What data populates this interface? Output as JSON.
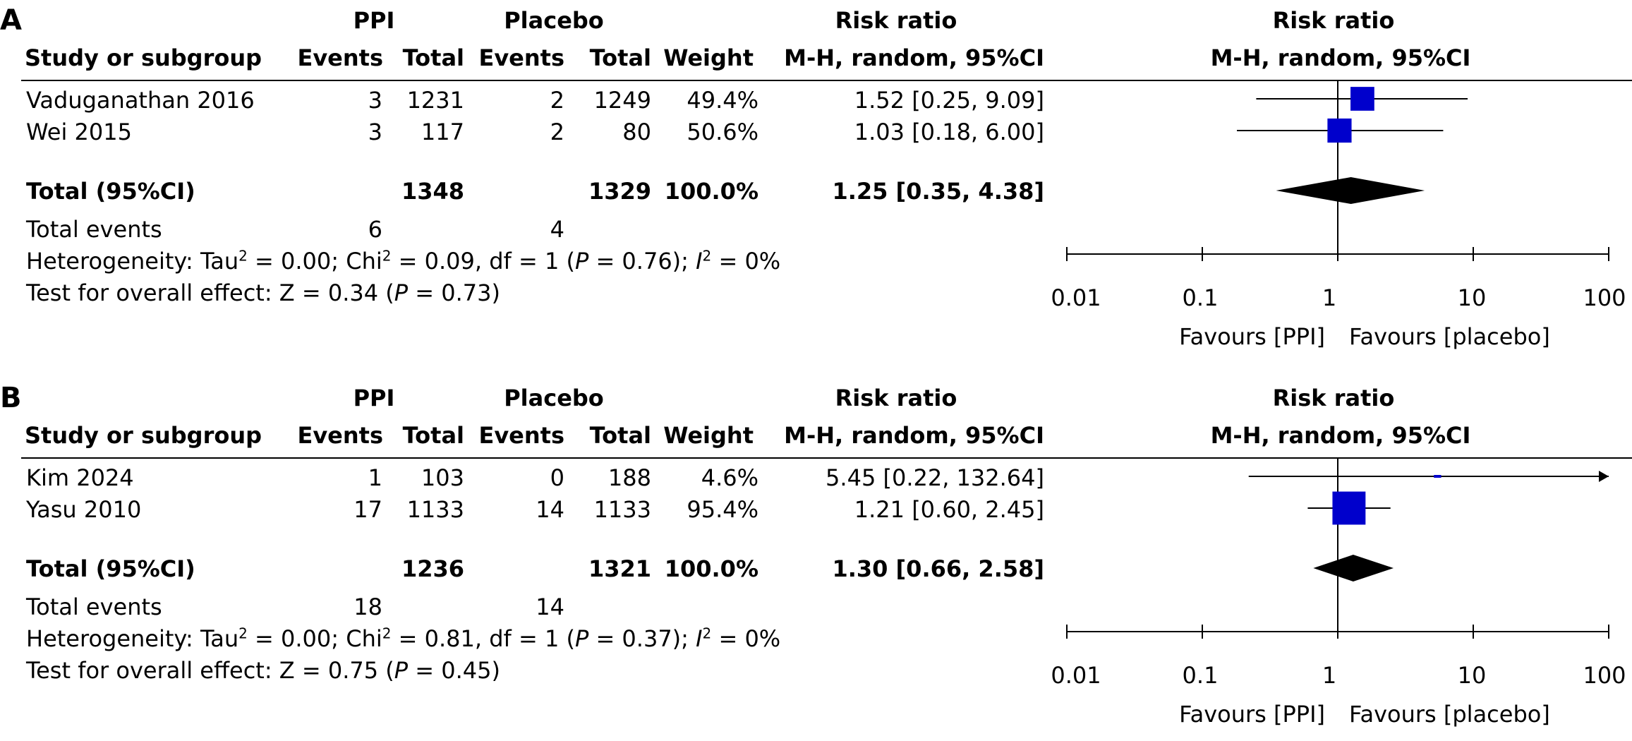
{
  "chart_data": [
    {
      "type": "forest",
      "panel_label": "A",
      "group_headers": {
        "experimental": "PPI",
        "control": "Placebo",
        "rr_col": "Risk ratio",
        "plot": "Risk ratio"
      },
      "columns": [
        "Study or subgroup",
        "Events",
        "Total",
        "Events",
        "Total",
        "Weight",
        "M-H, random, 95%CI"
      ],
      "plot_subheader": "M-H, random, 95%CI",
      "studies": [
        {
          "name": "Vaduganathan 2016",
          "ppi_events": "3",
          "ppi_total": "1231",
          "placebo_events": "2",
          "placebo_total": "1249",
          "weight": "49.4%",
          "ci_text": "1.52 [0.25, 9.09]",
          "rr": 1.52,
          "lo": 0.25,
          "hi": 9.09,
          "w": 49.4
        },
        {
          "name": "Wei 2015",
          "ppi_events": "3",
          "ppi_total": "117",
          "placebo_events": "2",
          "placebo_total": "80",
          "weight": "50.6%",
          "ci_text": "1.03 [0.18, 6.00]",
          "rr": 1.03,
          "lo": 0.18,
          "hi": 6.0,
          "w": 50.6
        }
      ],
      "total": {
        "label": "Total (95%CI)",
        "ppi_total": "1348",
        "placebo_total": "1329",
        "weight": "100.0%",
        "ci_text": "1.25 [0.35, 4.38]",
        "rr": 1.25,
        "lo": 0.35,
        "hi": 4.38
      },
      "total_events": {
        "label": "Total events",
        "ppi": "6",
        "placebo": "4"
      },
      "heterogeneity": {
        "prefix": "Heterogeneity: Tau",
        "tau2": " = 0.00; Chi",
        "chi2": " = 0.09, df = 1 (",
        "p_label": "P",
        "p_value": " = 0.76); ",
        "i_label": "I",
        "i2": " = 0%"
      },
      "overall_effect": {
        "prefix": "Test for overall effect: Z = 0.34 (",
        "p_label": "P",
        "p_value": " = 0.73)"
      },
      "axis": {
        "scale": "log",
        "ticks": [
          "0.01",
          "0.1",
          "1",
          "10",
          "100"
        ],
        "tick_values": [
          0.01,
          0.1,
          1,
          10,
          100
        ],
        "favours_left": "Favours [PPI]",
        "favours_right": "Favours [placebo]"
      },
      "marker_color": "#0000CC"
    },
    {
      "type": "forest",
      "panel_label": "B",
      "group_headers": {
        "experimental": "PPI",
        "control": "Placebo",
        "rr_col": "Risk ratio",
        "plot": "Risk ratio"
      },
      "columns": [
        "Study or subgroup",
        "Events",
        "Total",
        "Events",
        "Total",
        "Weight",
        "M-H, random, 95%CI"
      ],
      "plot_subheader": "M-H, random, 95%CI",
      "studies": [
        {
          "name": "Kim 2024",
          "ppi_events": "1",
          "ppi_total": "103",
          "placebo_events": "0",
          "placebo_total": "188",
          "weight": "4.6%",
          "ci_text": "5.45 [0.22, 132.64]",
          "rr": 5.45,
          "lo": 0.22,
          "hi": 132.64,
          "w": 4.6
        },
        {
          "name": "Yasu 2010",
          "ppi_events": "17",
          "ppi_total": "1133",
          "placebo_events": "14",
          "placebo_total": "1133",
          "weight": "95.4%",
          "ci_text": "1.21 [0.60, 2.45]",
          "rr": 1.21,
          "lo": 0.6,
          "hi": 2.45,
          "w": 95.4
        }
      ],
      "total": {
        "label": "Total (95%CI)",
        "ppi_total": "1236",
        "placebo_total": "1321",
        "weight": "100.0%",
        "ci_text": "1.30 [0.66, 2.58]",
        "rr": 1.3,
        "lo": 0.66,
        "hi": 2.58
      },
      "total_events": {
        "label": "Total events",
        "ppi": "18",
        "placebo": "14"
      },
      "heterogeneity": {
        "prefix": "Heterogeneity: Tau",
        "tau2": " = 0.00; Chi",
        "chi2": " = 0.81, df = 1 (",
        "p_label": "P",
        "p_value": " = 0.37); ",
        "i_label": "I",
        "i2": " = 0%"
      },
      "overall_effect": {
        "prefix": "Test for overall effect: Z = 0.75 (",
        "p_label": "P",
        "p_value": " = 0.45)"
      },
      "axis": {
        "scale": "log",
        "ticks": [
          "0.01",
          "0.1",
          "1",
          "10",
          "100"
        ],
        "tick_values": [
          0.01,
          0.1,
          1,
          10,
          100
        ],
        "favours_left": "Favours [PPI]",
        "favours_right": "Favours [placebo]"
      },
      "marker_color": "#0000CC"
    }
  ]
}
